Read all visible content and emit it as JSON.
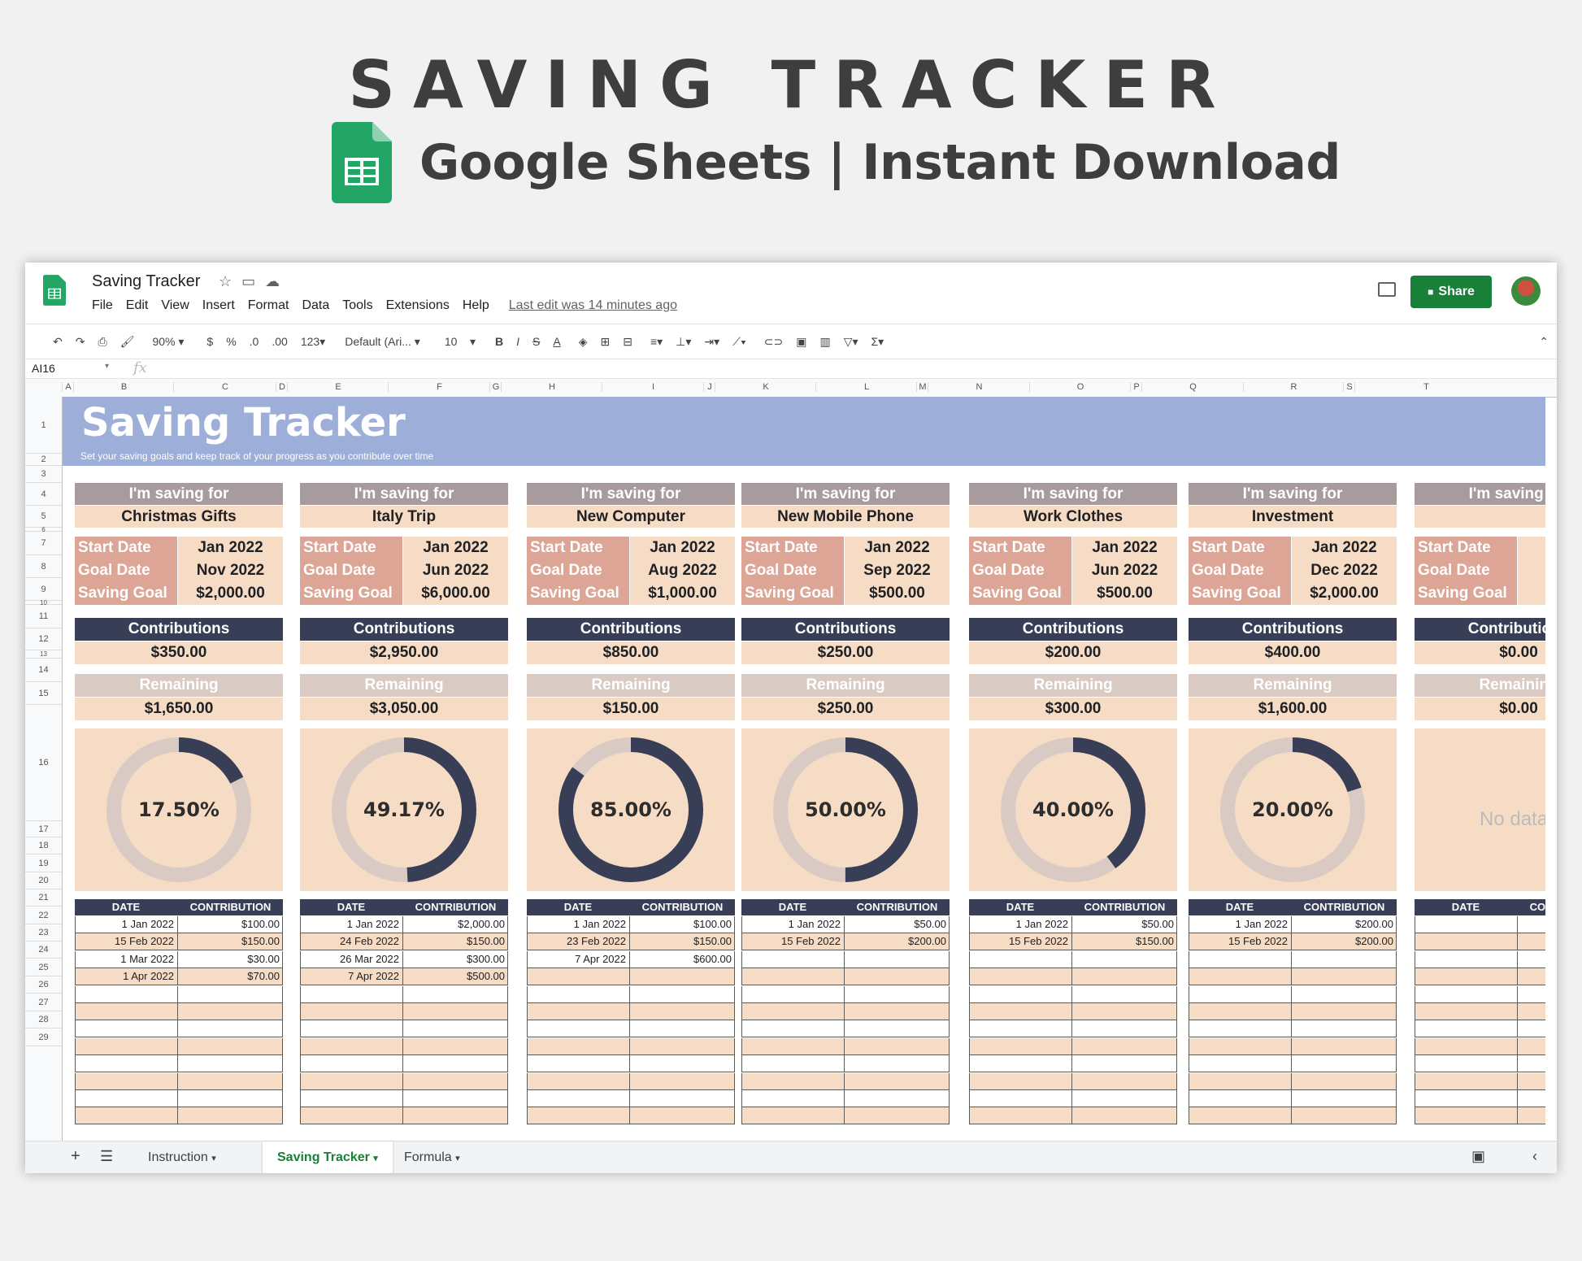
{
  "hero": {
    "title": "SAVING TRACKER",
    "subtitle": "Google Sheets | Instant Download"
  },
  "app": {
    "doc_title": "Saving Tracker",
    "menu": [
      "File",
      "Edit",
      "View",
      "Insert",
      "Format",
      "Data",
      "Tools",
      "Extensions",
      "Help"
    ],
    "last_edit": "Last edit was 14 minutes ago",
    "share_label": "Share",
    "zoom": "90%",
    "currency": "$",
    "percent": "%",
    "dec_less": ".0",
    "dec_more": ".00",
    "num_format": "123",
    "font": "Default (Ari...",
    "font_size": "10",
    "name_box": "AI16",
    "fx": "fx"
  },
  "columns": [
    "A",
    "B",
    "C",
    "D",
    "E",
    "F",
    "G",
    "H",
    "I",
    "J",
    "K",
    "L",
    "M",
    "N",
    "O",
    "P",
    "Q",
    "R",
    "S",
    "T"
  ],
  "rows": [
    "1",
    "2",
    "3",
    "4",
    "5",
    "6",
    "7",
    "8",
    "9",
    "10",
    "11",
    "12",
    "13",
    "14",
    "15",
    "16",
    "17",
    "18",
    "19",
    "20",
    "21",
    "22",
    "23",
    "24",
    "25",
    "26",
    "27",
    "28",
    "29"
  ],
  "sheet": {
    "title": "Saving Tracker",
    "subtitle": "Set your saving goals and keep track of your progress as you contribute over time"
  },
  "labels": {
    "saving_for": "I'm saving for",
    "start_date": "Start Date",
    "goal_date": "Goal Date",
    "saving_goal": "Saving Goal",
    "contributions": "Contributions",
    "remaining": "Remaining",
    "date_col": "DATE",
    "contribution_col": "CONTRIBUTION",
    "no_data": "No data"
  },
  "cards": [
    {
      "name": "Christmas Gifts",
      "start": "Jan 2022",
      "goal_date": "Nov 2022",
      "goal": "$2,000.00",
      "contrib": "$350.00",
      "remaining": "$1,650.00",
      "pct_label": "17.50%",
      "pct": 0.175,
      "entries": [
        [
          "1 Jan 2022",
          "$100.00"
        ],
        [
          "15 Feb 2022",
          "$150.00"
        ],
        [
          "1 Mar 2022",
          "$30.00"
        ],
        [
          "1 Apr 2022",
          "$70.00"
        ]
      ]
    },
    {
      "name": "Italy Trip",
      "start": "Jan 2022",
      "goal_date": "Jun 2022",
      "goal": "$6,000.00",
      "contrib": "$2,950.00",
      "remaining": "$3,050.00",
      "pct_label": "49.17%",
      "pct": 0.4917,
      "entries": [
        [
          "1 Jan 2022",
          "$2,000.00"
        ],
        [
          "24 Feb 2022",
          "$150.00"
        ],
        [
          "26 Mar 2022",
          "$300.00"
        ],
        [
          "7 Apr 2022",
          "$500.00"
        ]
      ]
    },
    {
      "name": "New Computer",
      "start": "Jan 2022",
      "goal_date": "Aug 2022",
      "goal": "$1,000.00",
      "contrib": "$850.00",
      "remaining": "$150.00",
      "pct_label": "85.00%",
      "pct": 0.85,
      "entries": [
        [
          "1 Jan 2022",
          "$100.00"
        ],
        [
          "23 Feb 2022",
          "$150.00"
        ],
        [
          "7 Apr 2022",
          "$600.00"
        ]
      ]
    },
    {
      "name": "New Mobile Phone",
      "start": "Jan 2022",
      "goal_date": "Sep 2022",
      "goal": "$500.00",
      "contrib": "$250.00",
      "remaining": "$250.00",
      "pct_label": "50.00%",
      "pct": 0.5,
      "entries": [
        [
          "1 Jan 2022",
          "$50.00"
        ],
        [
          "15 Feb 2022",
          "$200.00"
        ]
      ]
    },
    {
      "name": "Work Clothes",
      "start": "Jan 2022",
      "goal_date": "Jun 2022",
      "goal": "$500.00",
      "contrib": "$200.00",
      "remaining": "$300.00",
      "pct_label": "40.00%",
      "pct": 0.4,
      "entries": [
        [
          "1 Jan 2022",
          "$50.00"
        ],
        [
          "15 Feb 2022",
          "$150.00"
        ]
      ]
    },
    {
      "name": "Investment",
      "start": "Jan 2022",
      "goal_date": "Dec 2022",
      "goal": "$2,000.00",
      "contrib": "$400.00",
      "remaining": "$1,600.00",
      "pct_label": "20.00%",
      "pct": 0.2,
      "entries": [
        [
          "1 Jan 2022",
          "$200.00"
        ],
        [
          "15 Feb 2022",
          "$200.00"
        ]
      ]
    },
    {
      "name": "",
      "start": "",
      "goal_date": "",
      "goal": "",
      "contrib": "$0.00",
      "remaining": "$0.00",
      "pct_label": "",
      "pct": null,
      "entries": []
    }
  ],
  "tabs": [
    "Instruction",
    "Saving Tracker",
    "Formula"
  ],
  "colors": {
    "accent": "#188038",
    "banner": "#9dafd8",
    "navy": "#383e56",
    "peach": "#f7dcc5",
    "rose": "#dca595",
    "taupe": "#a89b9d",
    "ring_bg": "#d9cac4"
  }
}
